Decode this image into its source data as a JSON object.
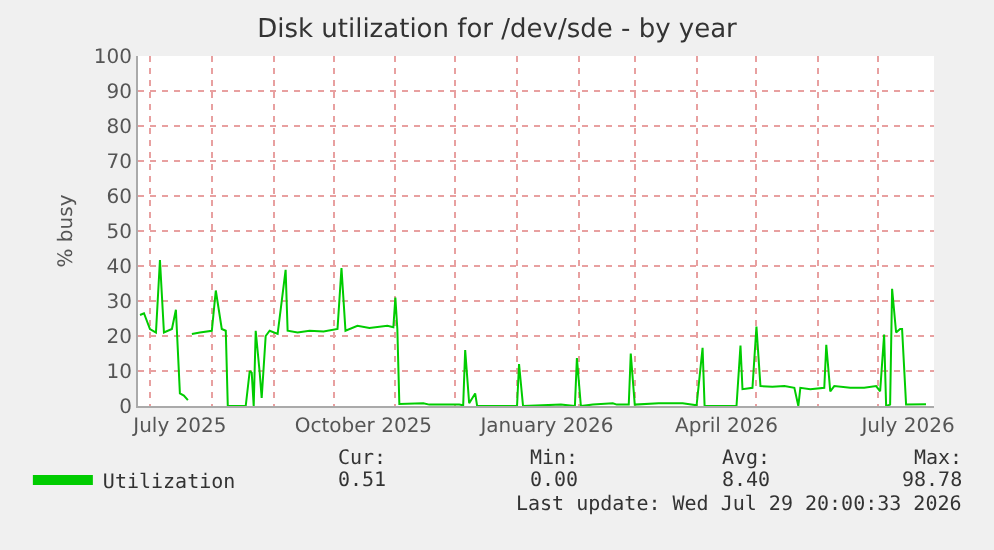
{
  "chart_data": {
    "type": "line",
    "title": "Disk utilization for /dev/sde - by year",
    "ylabel": "% busy",
    "x": [
      "2025-06-26",
      "2025-06-28",
      "2025-07-01",
      "2025-07-04",
      "2025-07-06",
      "2025-07-08",
      "2025-07-12",
      "2025-07-14",
      "2025-07-16",
      "2025-07-18",
      "2025-07-20",
      "2025-07-21",
      "2025-07-22",
      "2025-07-26",
      "2025-08-01",
      "2025-08-03",
      "2025-08-06",
      "2025-08-08",
      "2025-08-09",
      "2025-08-18",
      "2025-08-20",
      "2025-08-21",
      "2025-08-22",
      "2025-08-23",
      "2025-08-25",
      "2025-08-26",
      "2025-08-28",
      "2025-08-30",
      "2025-09-03",
      "2025-09-07",
      "2025-09-08",
      "2025-09-13",
      "2025-09-19",
      "2025-09-26",
      "2025-10-03",
      "2025-10-05",
      "2025-10-07",
      "2025-10-13",
      "2025-10-19",
      "2025-10-28",
      "2025-10-31",
      "2025-11-01",
      "2025-11-02",
      "2025-11-03",
      "2025-11-15",
      "2025-11-18",
      "2025-12-03",
      "2025-12-05",
      "2025-12-06",
      "2025-12-08",
      "2025-12-11",
      "2025-12-12",
      "2026-01-01",
      "2026-01-02",
      "2026-01-04",
      "2026-01-23",
      "2026-01-30",
      "2026-01-31",
      "2026-02-02",
      "2026-02-08",
      "2026-02-18",
      "2026-02-20",
      "2026-02-26",
      "2026-02-27",
      "2026-03-01",
      "2026-03-13",
      "2026-03-25",
      "2026-04-01",
      "2026-04-04",
      "2026-04-05",
      "2026-04-21",
      "2026-04-23",
      "2026-04-24",
      "2026-04-29",
      "2026-05-01",
      "2026-05-03",
      "2026-05-09",
      "2026-05-15",
      "2026-05-20",
      "2026-05-22",
      "2026-05-23",
      "2026-05-28",
      "2026-06-04",
      "2026-06-05",
      "2026-06-07",
      "2026-06-09",
      "2026-06-17",
      "2026-06-24",
      "2026-06-30",
      "2026-07-02",
      "2026-07-04",
      "2026-07-05",
      "2026-07-07",
      "2026-07-08",
      "2026-07-10",
      "2026-07-12",
      "2026-07-13",
      "2026-07-15",
      "2026-07-25"
    ],
    "series": [
      {
        "name": "Utilization",
        "color": "#00cc00",
        "values": [
          26,
          26.5,
          22,
          21,
          41.7,
          21,
          22,
          27.5,
          3.6,
          3,
          1.7,
          null,
          20.6,
          21,
          21.5,
          33,
          22,
          21.5,
          0,
          0,
          10,
          9.5,
          0,
          21.5,
          9.5,
          2.3,
          20,
          21.5,
          20.6,
          38.9,
          21.5,
          21,
          21.5,
          21.3,
          22,
          39.4,
          21.5,
          22.9,
          22.3,
          22.9,
          22.5,
          31,
          22,
          0.6,
          0.8,
          0.4,
          0.4,
          0.2,
          16,
          0.8,
          3.6,
          0,
          0,
          12,
          0,
          0.4,
          0,
          13.7,
          0,
          0.4,
          0.8,
          0.4,
          0.4,
          15,
          0.4,
          0.8,
          0.8,
          0.2,
          16.6,
          0,
          0,
          17.3,
          4.8,
          5.2,
          22.7,
          5.7,
          5.5,
          5.7,
          5.2,
          0,
          5.2,
          4.8,
          5.2,
          17.5,
          4.2,
          5.7,
          5.2,
          5.2,
          5.7,
          4.2,
          20.4,
          0,
          0.4,
          33.5,
          21,
          22,
          22,
          0.4,
          0.5
        ]
      }
    ],
    "xlim": [
      "2025-06-25",
      "2026-07-29"
    ],
    "xticks": [
      {
        "value": "2025-07-16",
        "label": "July 2025"
      },
      {
        "value": "2025-10-16",
        "label": "October 2025"
      },
      {
        "value": "2026-01-16",
        "label": "January 2026"
      },
      {
        "value": "2026-04-16",
        "label": "April 2026"
      },
      {
        "value": "2026-07-16",
        "label": "July 2026"
      }
    ],
    "ylim": [
      0,
      100
    ],
    "yticks": [
      0,
      10,
      20,
      30,
      40,
      50,
      60,
      70,
      80,
      90,
      100
    ],
    "grid": true,
    "legend": "bottom left",
    "marker": "none",
    "line_style": "solid",
    "annotations": [
      "Cur:",
      "Min:",
      "Avg:",
      "Max:",
      "0.51",
      "0.00",
      "8.40",
      "98.78",
      "Last update: Wed Jul 29 20:00:33 2026"
    ]
  }
}
